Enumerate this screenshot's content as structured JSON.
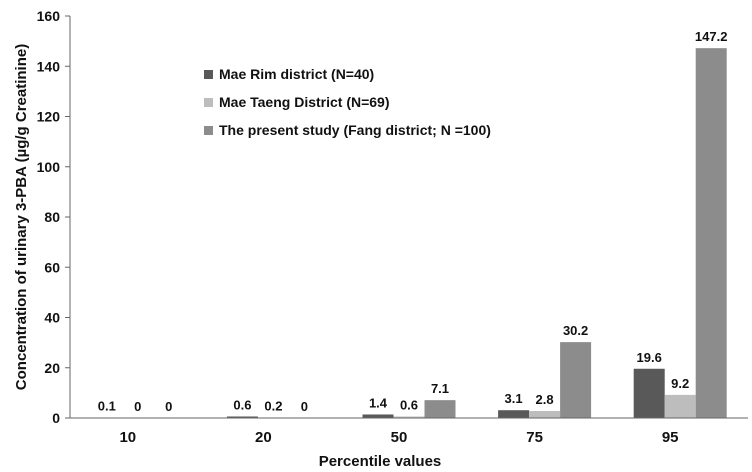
{
  "chart_data": {
    "type": "bar",
    "xlabel": "Percentile values",
    "ylabel": "Concentration of urinary 3-PBA (µg/g Creatinine)",
    "ylim": [
      0,
      160
    ],
    "yticks": [
      0,
      20,
      40,
      60,
      80,
      100,
      120,
      140,
      160
    ],
    "grid": false,
    "legend_position": "top-left",
    "categories": [
      "10",
      "20",
      "50",
      "75",
      "95"
    ],
    "series": [
      {
        "name": "Mae Rim district (N=40)",
        "color": "#595959",
        "values": [
          0.1,
          0.6,
          1.4,
          3.1,
          19.6
        ],
        "labels": [
          "0.1",
          "0.6",
          "1.4",
          "3.1",
          "19.6"
        ]
      },
      {
        "name": "Mae Taeng District (N=69)",
        "color": "#bdbdbd",
        "values": [
          0,
          0.2,
          0.6,
          2.8,
          9.2
        ],
        "labels": [
          "0",
          "0.2",
          "0.6",
          "2.8",
          "9.2"
        ]
      },
      {
        "name": "The present study (Fang district; N =100)",
        "color": "#8c8c8c",
        "values": [
          0,
          0,
          7.1,
          30.2,
          147.2
        ],
        "labels": [
          "0",
          "0",
          "7.1",
          "30.2",
          "147.2"
        ]
      }
    ]
  }
}
